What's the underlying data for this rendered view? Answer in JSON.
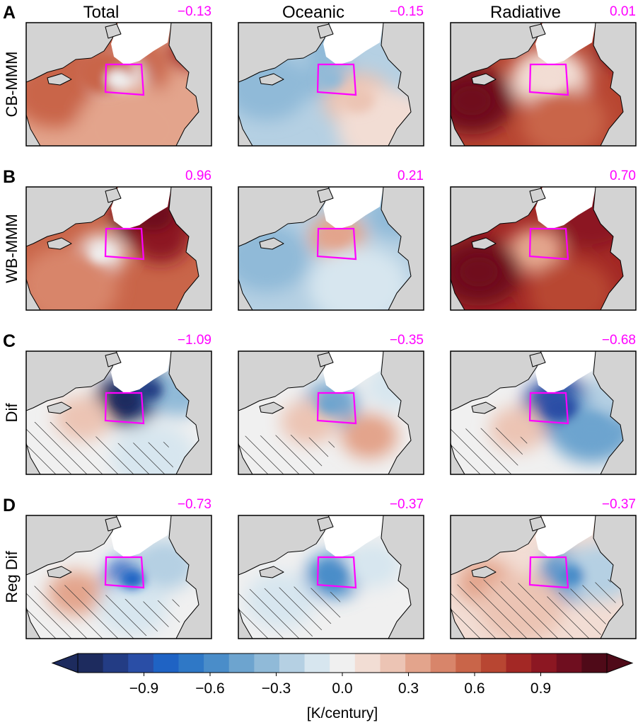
{
  "chart_data": {
    "type": "heatmap",
    "description_grid": "3x4 panel map grid",
    "columns": [
      "Total",
      "Oceanic",
      "Radiative"
    ],
    "rows": [
      {
        "letter": "A",
        "label": "CB-MMM",
        "values": [
          "−0.13",
          "−0.15",
          "0.01"
        ]
      },
      {
        "letter": "B",
        "label": "WB-MMM",
        "values": [
          "0.96",
          "0.21",
          "0.70"
        ]
      },
      {
        "letter": "C",
        "label": "Dif",
        "values": [
          "−1.09",
          "−0.35",
          "−0.68"
        ]
      },
      {
        "letter": "D",
        "label": "Reg Dif",
        "values": [
          "−0.73",
          "−0.37",
          "−0.37"
        ]
      }
    ],
    "panel_mean_values": [
      [
        -0.13,
        -0.15,
        0.01
      ],
      [
        0.96,
        0.21,
        0.7
      ],
      [
        -1.09,
        -0.35,
        -0.68
      ],
      [
        -0.73,
        -0.37,
        -0.37
      ]
    ],
    "colorbar": {
      "ticks": [
        "−0.9",
        "−0.6",
        "−0.3",
        "0.0",
        "0.3",
        "0.6",
        "0.9"
      ],
      "tick_values": [
        -0.9,
        -0.6,
        -0.3,
        0.0,
        0.3,
        0.6,
        0.9
      ],
      "range": [
        -1.2,
        1.2
      ],
      "label": "[K/century]",
      "extend": "both",
      "colors": [
        "#1d2b5e",
        "#233c84",
        "#2a4ea6",
        "#1f63c4",
        "#2f78c6",
        "#4a8dc9",
        "#6da4cf",
        "#90bad8",
        "#b5d0e3",
        "#d7e6ef",
        "#f0f0f0",
        "#f2ddd4",
        "#ecc4b4",
        "#e3a48c",
        "#d8856a",
        "#c96549",
        "#b84632",
        "#a32825",
        "#8c1722",
        "#6f0e1f",
        "#4f0a18"
      ]
    },
    "value_color": "#ff00ff",
    "box_color": "#ff00ff",
    "hatching": "rows C and D, non-significant regions"
  }
}
